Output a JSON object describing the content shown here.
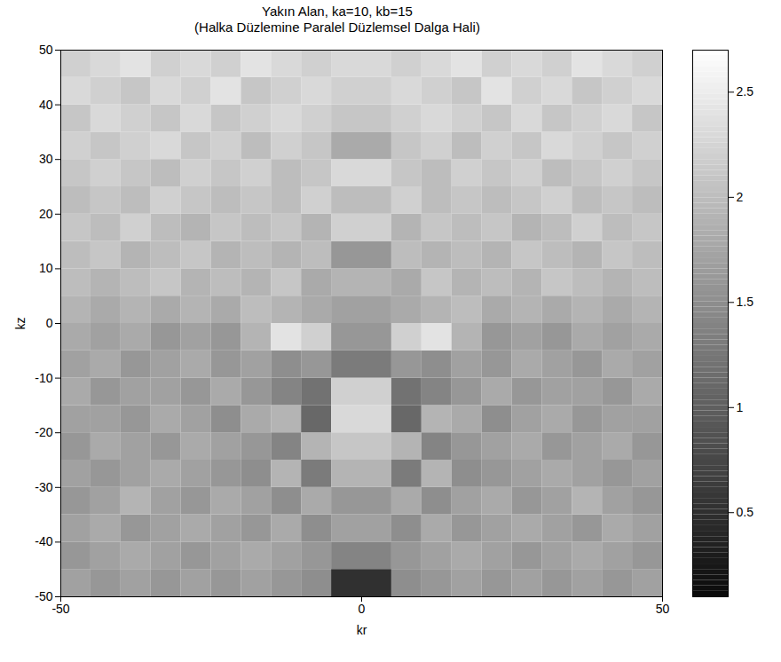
{
  "chart_data": {
    "type": "heatmap",
    "title": "Yakın Alan, ka=10, kb=15",
    "subtitle": "(Halka Düzlemine Paralel Düzlemsel Dalga Hali)",
    "x_label": "kr",
    "y_label": "kz",
    "xlim": [
      -50,
      50
    ],
    "ylim": [
      -50,
      50
    ],
    "xticks": [
      -50,
      0,
      50
    ],
    "yticks": [
      -50,
      -40,
      -30,
      -20,
      -10,
      0,
      10,
      20,
      30,
      40,
      50
    ],
    "x_bins": [
      -50,
      -45,
      -40,
      -35,
      -30,
      -25,
      -20,
      -15,
      -10,
      -5,
      0,
      5,
      10,
      15,
      20,
      25,
      30,
      35,
      40,
      45,
      50
    ],
    "y_bins": [
      -50,
      -45,
      -40,
      -35,
      -30,
      -25,
      -20,
      -15,
      -10,
      -5,
      0,
      5,
      10,
      15,
      20,
      25,
      30,
      35,
      40,
      45,
      50
    ],
    "cells": [
      [
        1.7,
        1.6,
        1.7,
        1.6,
        1.7,
        1.6,
        1.7,
        1.6,
        1.5,
        0.5,
        0.5,
        1.5,
        1.6,
        1.7,
        1.6,
        1.7,
        1.6,
        1.7,
        1.6,
        1.7
      ],
      [
        1.6,
        1.7,
        1.8,
        1.7,
        1.6,
        1.7,
        1.8,
        1.7,
        1.6,
        1.4,
        1.4,
        1.6,
        1.7,
        1.8,
        1.7,
        1.6,
        1.7,
        1.8,
        1.7,
        1.6
      ],
      [
        1.7,
        1.8,
        1.6,
        1.7,
        1.8,
        1.7,
        1.6,
        1.8,
        1.5,
        1.7,
        1.7,
        1.5,
        1.8,
        1.6,
        1.7,
        1.8,
        1.7,
        1.6,
        1.8,
        1.7
      ],
      [
        1.6,
        1.7,
        1.9,
        1.7,
        1.6,
        1.8,
        1.7,
        1.5,
        1.8,
        1.6,
        1.6,
        1.8,
        1.5,
        1.7,
        1.8,
        1.6,
        1.7,
        1.9,
        1.7,
        1.6
      ],
      [
        1.7,
        1.6,
        1.7,
        1.8,
        1.7,
        1.6,
        1.5,
        1.9,
        1.3,
        1.9,
        1.9,
        1.3,
        1.9,
        1.5,
        1.6,
        1.7,
        1.8,
        1.7,
        1.6,
        1.7
      ],
      [
        1.6,
        1.8,
        1.7,
        1.6,
        1.8,
        1.7,
        1.6,
        1.4,
        1.9,
        2.1,
        2.1,
        1.9,
        1.4,
        1.6,
        1.7,
        1.8,
        1.6,
        1.7,
        1.8,
        1.6
      ],
      [
        1.7,
        1.7,
        1.6,
        1.8,
        1.7,
        1.5,
        1.8,
        1.9,
        1.1,
        2.3,
        2.3,
        1.1,
        1.9,
        1.8,
        1.5,
        1.7,
        1.8,
        1.6,
        1.7,
        1.7
      ],
      [
        1.8,
        1.6,
        1.7,
        1.7,
        1.6,
        1.8,
        1.6,
        1.4,
        1.2,
        2.2,
        2.2,
        1.2,
        1.4,
        1.6,
        1.8,
        1.6,
        1.7,
        1.7,
        1.6,
        1.8
      ],
      [
        1.7,
        1.8,
        1.6,
        1.7,
        1.8,
        1.6,
        1.7,
        1.5,
        1.6,
        1.3,
        1.3,
        1.6,
        1.5,
        1.7,
        1.6,
        1.8,
        1.7,
        1.6,
        1.8,
        1.7
      ],
      [
        1.8,
        1.7,
        1.8,
        1.6,
        1.7,
        1.6,
        1.9,
        2.4,
        2.2,
        1.6,
        1.6,
        2.2,
        2.4,
        1.9,
        1.6,
        1.7,
        1.6,
        1.8,
        1.7,
        1.8
      ],
      [
        1.9,
        1.8,
        1.9,
        1.8,
        1.9,
        1.8,
        2.0,
        1.9,
        1.8,
        1.7,
        1.7,
        1.8,
        1.9,
        2.0,
        1.8,
        1.9,
        1.8,
        1.9,
        1.8,
        1.9
      ],
      [
        2.0,
        1.9,
        2.0,
        2.1,
        1.9,
        2.0,
        1.9,
        2.1,
        1.8,
        1.9,
        1.9,
        1.8,
        2.1,
        1.9,
        2.0,
        1.9,
        2.1,
        2.0,
        1.9,
        2.0
      ],
      [
        2.0,
        2.1,
        1.9,
        2.0,
        2.1,
        1.9,
        2.0,
        1.9,
        2.0,
        1.6,
        1.6,
        2.0,
        1.9,
        2.0,
        1.9,
        2.1,
        2.0,
        1.9,
        2.1,
        2.0
      ],
      [
        2.1,
        2.0,
        2.2,
        2.0,
        1.9,
        2.1,
        2.0,
        2.1,
        1.9,
        2.2,
        2.2,
        1.9,
        2.1,
        2.0,
        2.1,
        1.9,
        2.0,
        2.2,
        2.0,
        2.1
      ],
      [
        2.0,
        2.1,
        2.0,
        2.2,
        2.1,
        2.0,
        2.1,
        2.0,
        2.2,
        2.0,
        2.0,
        2.2,
        2.0,
        2.1,
        2.0,
        2.1,
        2.2,
        2.0,
        2.1,
        2.0
      ],
      [
        2.1,
        2.2,
        2.1,
        2.0,
        2.2,
        2.1,
        2.2,
        2.0,
        2.1,
        2.3,
        2.3,
        2.1,
        2.0,
        2.2,
        2.1,
        2.2,
        2.0,
        2.1,
        2.2,
        2.1
      ],
      [
        2.2,
        2.1,
        2.2,
        2.3,
        2.1,
        2.2,
        2.0,
        2.2,
        2.1,
        1.8,
        1.8,
        2.1,
        2.2,
        2.0,
        2.2,
        2.1,
        2.3,
        2.2,
        2.1,
        2.2
      ],
      [
        2.1,
        2.3,
        2.2,
        2.1,
        2.3,
        2.1,
        2.2,
        2.3,
        2.2,
        2.1,
        2.1,
        2.2,
        2.3,
        2.2,
        2.1,
        2.3,
        2.1,
        2.2,
        2.3,
        2.1
      ],
      [
        2.3,
        2.2,
        2.1,
        2.3,
        2.2,
        2.4,
        2.1,
        2.2,
        2.3,
        2.2,
        2.2,
        2.3,
        2.2,
        2.1,
        2.4,
        2.2,
        2.3,
        2.1,
        2.2,
        2.3
      ],
      [
        2.2,
        2.3,
        2.4,
        2.2,
        2.3,
        2.2,
        2.4,
        2.3,
        2.2,
        2.3,
        2.3,
        2.2,
        2.3,
        2.4,
        2.2,
        2.3,
        2.2,
        2.4,
        2.3,
        2.2
      ]
    ],
    "colorbar": {
      "range": [
        0.1,
        2.7
      ],
      "ticks": [
        0.5,
        1,
        1.5,
        2,
        2.5
      ]
    }
  }
}
